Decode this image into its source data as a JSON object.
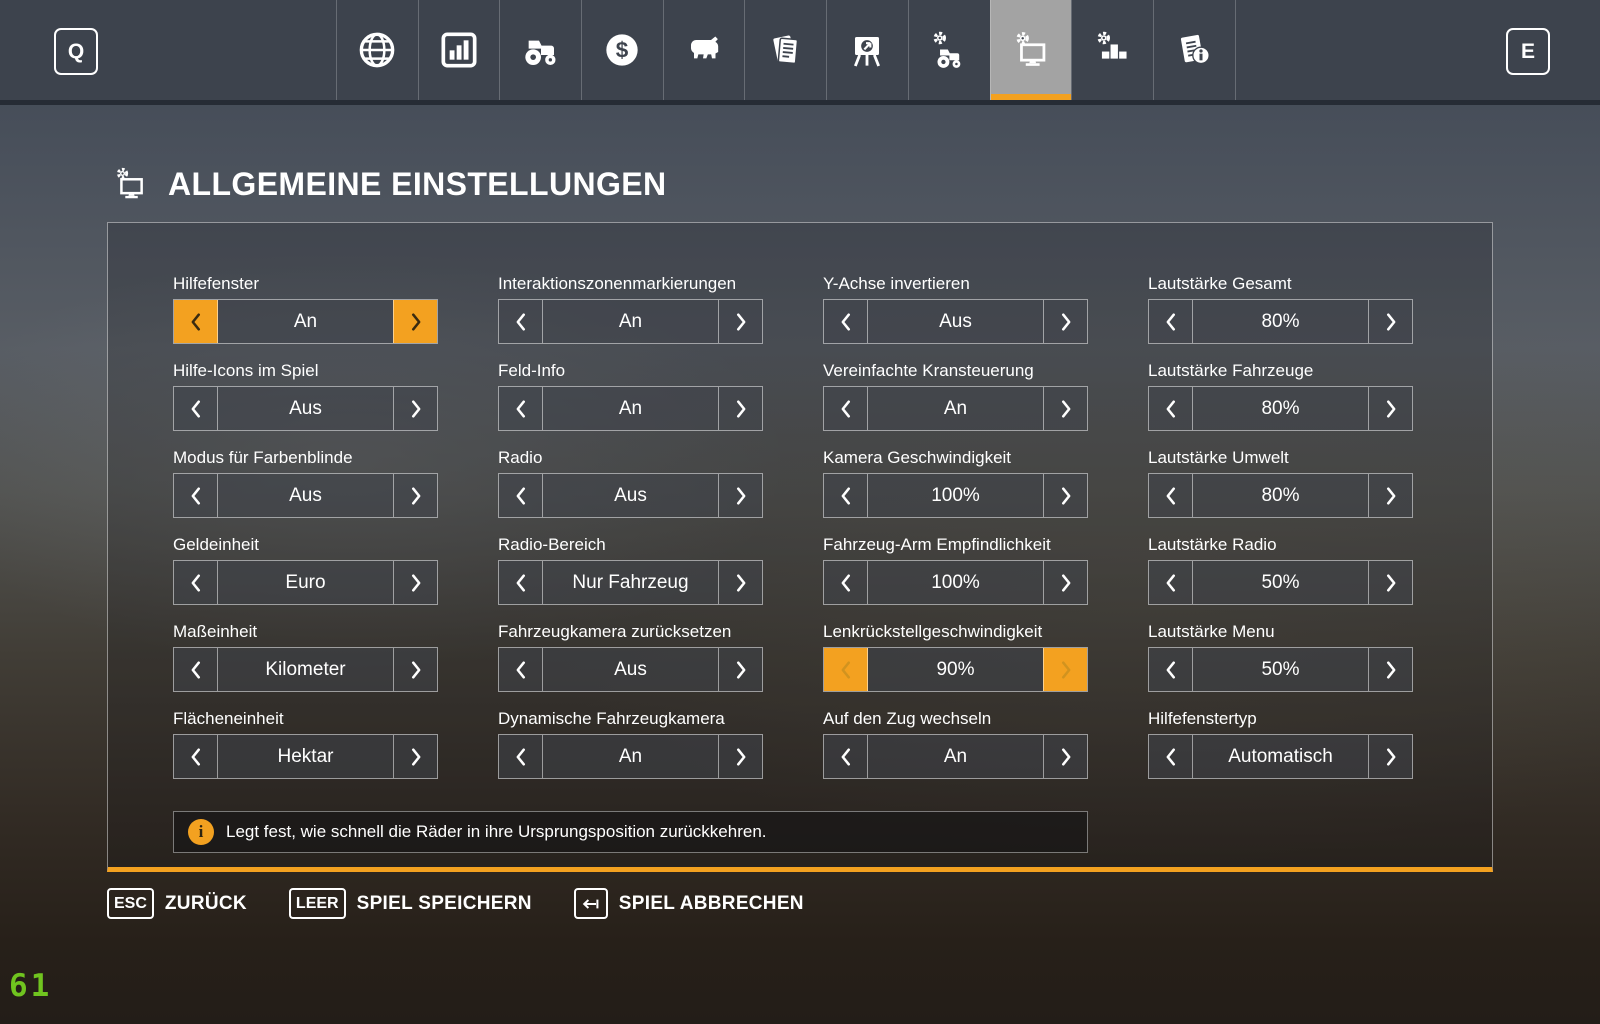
{
  "colors": {
    "accent": "#f3a120",
    "selected_tab_bg": "#a3a3a3",
    "fps_green": "#70c41f"
  },
  "topbar": {
    "left_key": "Q",
    "right_key": "E",
    "tabs": [
      {
        "name": "map",
        "icon": "globe-icon",
        "selected": false
      },
      {
        "name": "statistics",
        "icon": "bar-chart-icon",
        "selected": false
      },
      {
        "name": "garage",
        "icon": "tractor-icon",
        "selected": false
      },
      {
        "name": "finances",
        "icon": "dollar-icon",
        "selected": false
      },
      {
        "name": "animals",
        "icon": "cow-icon",
        "selected": false
      },
      {
        "name": "contracts",
        "icon": "documents-icon",
        "selected": false
      },
      {
        "name": "production",
        "icon": "easel-icon",
        "selected": false
      },
      {
        "name": "vehicle-settings",
        "icon": "tractor-gear-icon",
        "selected": false
      },
      {
        "name": "general-settings",
        "icon": "monitor-gear-icon",
        "selected": true
      },
      {
        "name": "game-settings",
        "icon": "gear-blocks-icon",
        "selected": false
      },
      {
        "name": "help",
        "icon": "info-doc-icon",
        "selected": false
      }
    ]
  },
  "page": {
    "title": "ALLGEMEINE EINSTELLUNGEN",
    "title_icon": "monitor-gear-icon"
  },
  "settings": {
    "columns": [
      {
        "items": [
          {
            "label": "Hilfefenster",
            "value": "An",
            "state": "focused"
          },
          {
            "label": "Hilfe-Icons im Spiel",
            "value": "Aus",
            "state": "normal"
          },
          {
            "label": "Modus für Farbenblinde",
            "value": "Aus",
            "state": "normal"
          },
          {
            "label": "Geldeinheit",
            "value": "Euro",
            "state": "normal"
          },
          {
            "label": "Maßeinheit",
            "value": "Kilometer",
            "state": "normal"
          },
          {
            "label": "Flächeneinheit",
            "value": "Hektar",
            "state": "normal"
          }
        ]
      },
      {
        "items": [
          {
            "label": "Interaktionszonenmarkierungen",
            "value": "An",
            "state": "normal"
          },
          {
            "label": "Feld-Info",
            "value": "An",
            "state": "normal"
          },
          {
            "label": "Radio",
            "value": "Aus",
            "state": "normal"
          },
          {
            "label": "Radio-Bereich",
            "value": "Nur Fahrzeug",
            "state": "normal"
          },
          {
            "label": "Fahrzeugkamera zurücksetzen",
            "value": "Aus",
            "state": "normal"
          },
          {
            "label": "Dynamische Fahrzeugkamera",
            "value": "An",
            "state": "normal"
          }
        ]
      },
      {
        "items": [
          {
            "label": "Y-Achse invertieren",
            "value": "Aus",
            "state": "normal"
          },
          {
            "label": "Vereinfachte Kransteuerung",
            "value": "An",
            "state": "normal"
          },
          {
            "label": "Kamera Geschwindigkeit",
            "value": "100%",
            "state": "normal"
          },
          {
            "label": "Fahrzeug-Arm Empfindlichkeit",
            "value": "100%",
            "state": "normal"
          },
          {
            "label": "Lenkrückstellgeschwindigkeit",
            "value": "90%",
            "state": "hovered"
          },
          {
            "label": "Auf den Zug wechseln",
            "value": "An",
            "state": "normal"
          }
        ]
      },
      {
        "items": [
          {
            "label": "Lautstärke Gesamt",
            "value": "80%",
            "state": "normal"
          },
          {
            "label": "Lautstärke Fahrzeuge",
            "value": "80%",
            "state": "normal"
          },
          {
            "label": "Lautstärke Umwelt",
            "value": "80%",
            "state": "normal"
          },
          {
            "label": "Lautstärke Radio",
            "value": "50%",
            "state": "normal"
          },
          {
            "label": "Lautstärke Menu",
            "value": "50%",
            "state": "normal"
          },
          {
            "label": "Hilfefenstertyp",
            "value": "Automatisch",
            "state": "normal"
          }
        ]
      }
    ]
  },
  "info_bar": {
    "icon": "info-circle-icon",
    "text": "Legt fest, wie schnell die Räder in ihre Ursprungsposition zurückkehren."
  },
  "footer": {
    "buttons": [
      {
        "key": "ESC",
        "label": "ZURÜCK"
      },
      {
        "key": "LEER",
        "label": "SPIEL SPEICHERN"
      },
      {
        "key_icon": "arrow-left-bar-icon",
        "label": "SPIEL ABBRECHEN"
      }
    ]
  },
  "fps_counter": "61"
}
